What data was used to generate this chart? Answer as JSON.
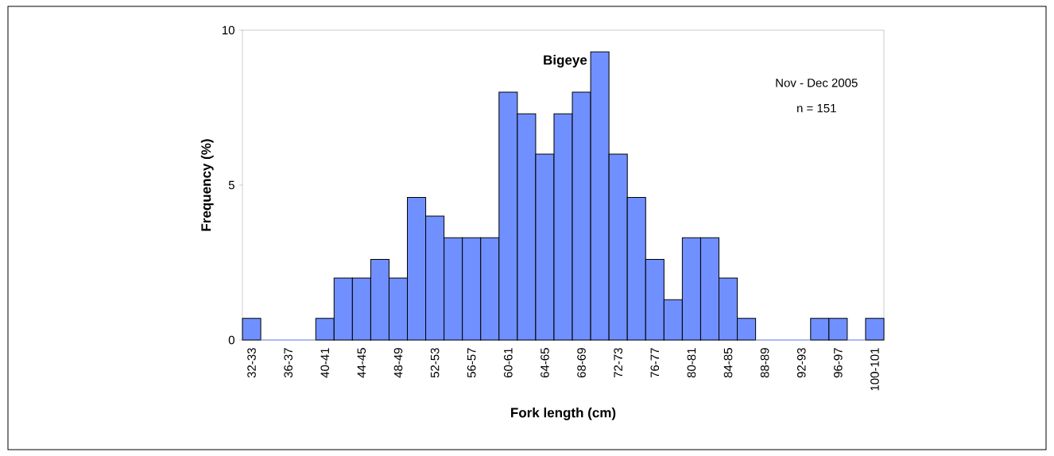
{
  "chart_data": {
    "type": "bar",
    "title": "Bigeye",
    "xlabel": "Fork length (cm)",
    "ylabel": "Frequency (%)",
    "categories": [
      "32-33",
      null,
      "36-37",
      null,
      "40-41",
      null,
      "44-45",
      null,
      "48-49",
      null,
      "52-53",
      null,
      "56-57",
      null,
      "60-61",
      null,
      "64-65",
      null,
      "68-69",
      null,
      "72-73",
      null,
      "76-77",
      null,
      "80-81",
      null,
      "84-85",
      null,
      "88-89",
      null,
      "92-93",
      null,
      "96-97",
      null,
      "100-101"
    ],
    "values": [
      0.7,
      0,
      0,
      0,
      0.7,
      2.0,
      2.0,
      2.6,
      2.0,
      4.6,
      4.0,
      3.3,
      3.3,
      3.3,
      8.0,
      7.3,
      6.0,
      7.3,
      8.0,
      9.3,
      6.0,
      4.6,
      2.6,
      1.3,
      3.3,
      3.3,
      2.0,
      0.7,
      0,
      0,
      0,
      0.7,
      0.7,
      0,
      0.7
    ],
    "color": "#7090ff",
    "ylim": [
      0,
      10
    ],
    "yticks": [
      0,
      5,
      10
    ],
    "grid": false,
    "annotations": [
      "Nov - Dec 2005",
      "n = 151"
    ]
  }
}
